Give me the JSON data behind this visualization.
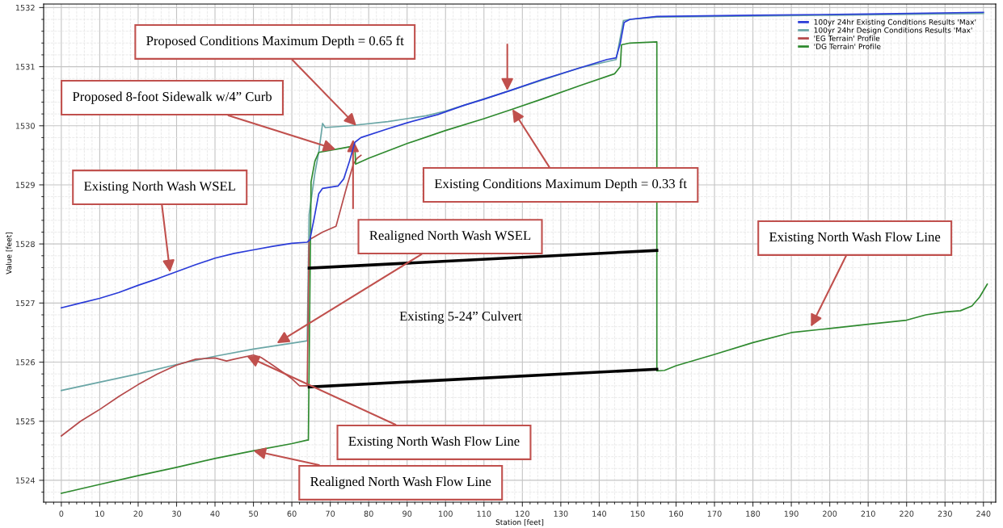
{
  "chart_data": {
    "type": "line",
    "xlabel": "Station [feet]",
    "ylabel": "Value [feet]",
    "xlim": [
      -4.6,
      243.2
    ],
    "ylim": [
      1523.63,
      1532.06
    ],
    "xticks": [
      0,
      10,
      20,
      30,
      40,
      50,
      60,
      70,
      80,
      90,
      100,
      110,
      120,
      130,
      140,
      150,
      160,
      170,
      180,
      190,
      200,
      210,
      220,
      230,
      240
    ],
    "yticks": [
      1524,
      1525,
      1526,
      1527,
      1528,
      1529,
      1530,
      1531,
      1532
    ],
    "grid": true,
    "legend": "top right",
    "series": [
      {
        "name": "100yr 24hr Existing Conditions Results 'Max'",
        "color": "#2a3bd8",
        "x": [
          0,
          5,
          10,
          15,
          20,
          25,
          30,
          35,
          40,
          45,
          50,
          55,
          60,
          64,
          64.7,
          66,
          67,
          68,
          72,
          73.5,
          75,
          76.4,
          78,
          85,
          90,
          98,
          105,
          110,
          117,
          125,
          135,
          142,
          144.4,
          145.5,
          146.5,
          148,
          155,
          180,
          210,
          240
        ],
        "values": [
          1526.92,
          1527.0,
          1527.08,
          1527.18,
          1527.3,
          1527.41,
          1527.53,
          1527.65,
          1527.76,
          1527.84,
          1527.9,
          1527.96,
          1528.01,
          1528.03,
          1528.07,
          1528.5,
          1528.85,
          1528.94,
          1528.98,
          1529.1,
          1529.4,
          1529.72,
          1529.8,
          1529.95,
          1530.05,
          1530.19,
          1530.35,
          1530.45,
          1530.6,
          1530.78,
          1530.98,
          1531.12,
          1531.15,
          1531.4,
          1531.75,
          1531.8,
          1531.85,
          1531.87,
          1531.89,
          1531.92
        ]
      },
      {
        "name": "100yr 24hr Design Conditions Results 'Max'",
        "color": "#6aa6a6",
        "x": [
          0,
          10,
          20,
          30,
          40,
          50,
          60,
          64,
          64.5,
          66,
          67,
          68,
          68.7,
          75,
          85,
          95,
          100,
          105,
          117,
          135,
          144.4,
          145.5,
          146.3,
          148,
          155,
          200,
          240
        ],
        "values": [
          1525.52,
          1525.66,
          1525.8,
          1525.96,
          1526.1,
          1526.22,
          1526.32,
          1526.36,
          1528.5,
          1529.2,
          1529.55,
          1530.04,
          1529.97,
          1530.0,
          1530.07,
          1530.17,
          1530.25,
          1530.35,
          1530.6,
          1530.98,
          1531.12,
          1531.5,
          1531.78,
          1531.8,
          1531.84,
          1531.87,
          1531.9
        ]
      },
      {
        "name": "'EG Terrain' Profile",
        "color": "#b5494a",
        "x": [
          0,
          5,
          10,
          15,
          20,
          25,
          30,
          35,
          40,
          43,
          45,
          50,
          52,
          55,
          60,
          62,
          64,
          64.5,
          68,
          71.5,
          74,
          76,
          77,
          78
        ],
        "values": [
          1524.75,
          1525.0,
          1525.2,
          1525.42,
          1525.62,
          1525.8,
          1525.95,
          1526.05,
          1526.07,
          1526.02,
          1526.05,
          1526.12,
          1526.08,
          1525.95,
          1525.72,
          1525.6,
          1525.6,
          1528.07,
          1528.2,
          1528.3,
          1528.9,
          1529.35,
          1529.45,
          1529.5
        ]
      },
      {
        "name": "'DG Terrain' Profile",
        "color": "#2f8a2f",
        "x": [
          0,
          10,
          20,
          30,
          40,
          50,
          60,
          64,
          64.3,
          65,
          66,
          67,
          73,
          76.4,
          76.6,
          80,
          90,
          100,
          110,
          117.4,
          125,
          135,
          144,
          145.5,
          145.8,
          148,
          155,
          155,
          157,
          160,
          170,
          180,
          190,
          200,
          210,
          220,
          225,
          230,
          234,
          237,
          239,
          241
        ],
        "values": [
          1523.78,
          1523.93,
          1524.08,
          1524.22,
          1524.37,
          1524.5,
          1524.62,
          1524.68,
          1524.68,
          1529.05,
          1529.4,
          1529.55,
          1529.62,
          1529.66,
          1529.35,
          1529.45,
          1529.7,
          1529.92,
          1530.12,
          1530.28,
          1530.45,
          1530.68,
          1530.88,
          1531.0,
          1531.37,
          1531.4,
          1531.42,
          1525.85,
          1525.86,
          1525.94,
          1526.13,
          1526.33,
          1526.5,
          1526.57,
          1526.64,
          1526.71,
          1526.8,
          1526.85,
          1526.87,
          1526.95,
          1527.1,
          1527.32
        ]
      },
      {
        "color": "#000000",
        "x": [
          64.5,
          155
        ],
        "values": [
          1527.59,
          1527.89
        ]
      },
      {
        "color": "#000000",
        "x": [
          64.5,
          155
        ],
        "values": [
          1525.58,
          1525.88
        ]
      }
    ],
    "annotations": [
      {
        "text": "Proposed Conditions Maximum Depth = 0.65 ft",
        "x": 76.8,
        "y": 1530.0
      },
      {
        "text": "Proposed 8-foot Sidewalk w/4” Curb",
        "x": 71.4,
        "y": 1529.6
      },
      {
        "text": "Existing North Wash WSEL",
        "x": 28.3,
        "y": 1527.52
      },
      {
        "text": "Existing Conditions Maximum Depth = 0.33 ft",
        "x": 117.4,
        "y": 1530.28
      },
      {
        "text": "Realigned North Wash WSEL",
        "x": 56.1,
        "y": 1526.32
      },
      "Existing 5-24” Culvert",
      {
        "text": "Existing North Wash Flow Line",
        "x": 195.1,
        "y": 1526.6
      },
      {
        "text": "Existing North Wash Flow Line",
        "x": 48.3,
        "y": 1526.1
      },
      {
        "text": "Realigned North Wash Flow Line",
        "x": 50,
        "y": 1524.5
      }
    ]
  }
}
